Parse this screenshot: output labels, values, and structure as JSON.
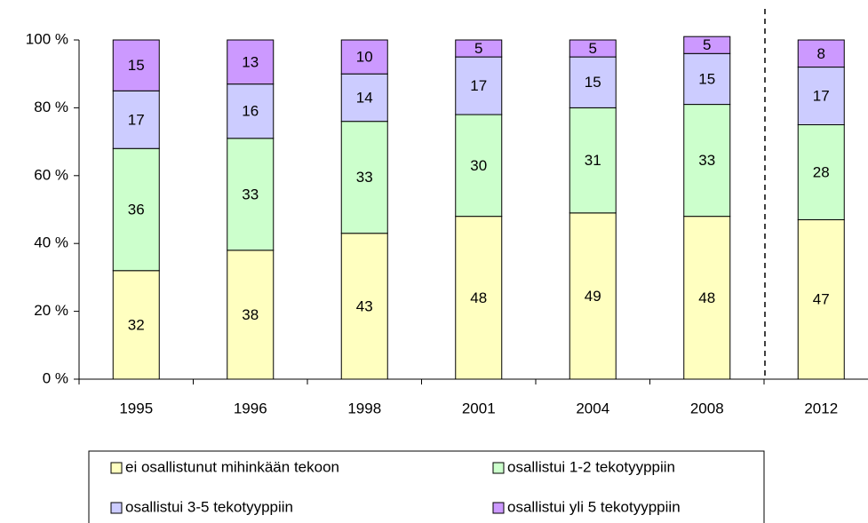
{
  "chart_data": {
    "type": "stacked_bar",
    "categories": [
      "1995",
      "1996",
      "1998",
      "2001",
      "2004",
      "2008",
      "2012"
    ],
    "series": [
      {
        "name": "ei osallistunut mihinkään tekoon",
        "color": "#ffffc0",
        "values": [
          32,
          38,
          43,
          48,
          49,
          48,
          47
        ]
      },
      {
        "name": "osallistui 1-2 tekotyyppiin",
        "color": "#ccffcc",
        "values": [
          36,
          33,
          33,
          30,
          31,
          33,
          28
        ]
      },
      {
        "name": "osallistui 3-5 tekotyyppiin",
        "color": "#ccccff",
        "values": [
          17,
          16,
          14,
          17,
          15,
          15,
          17
        ]
      },
      {
        "name": "osallistui yli 5 tekotyyppiin",
        "color": "#cc99ff",
        "values": [
          15,
          13,
          10,
          5,
          5,
          5,
          8
        ]
      }
    ],
    "ylim": [
      0,
      100
    ],
    "yticks": [
      {
        "value": 0,
        "label": "0 %"
      },
      {
        "value": 20,
        "label": "20 %"
      },
      {
        "value": 40,
        "label": "40 %"
      },
      {
        "value": 60,
        "label": "60 %"
      },
      {
        "value": 80,
        "label": "80 %"
      },
      {
        "value": 100,
        "label": "100 %"
      }
    ]
  }
}
